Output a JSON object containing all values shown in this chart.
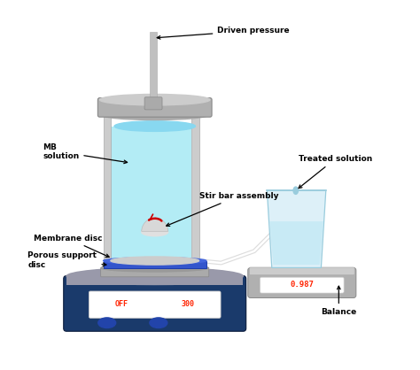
{
  "bg_color": "#ffffff",
  "labels": {
    "driven_pressure": "Driven pressure",
    "mb_solution": "MB\nsolution",
    "stir_bar": "Stir bar assembly",
    "membrane_disc": "Membrane disc",
    "porous_support": "Porous support\ndisc",
    "treated_solution": "Treated solution",
    "balance": "Balance",
    "display_left1": "OFF",
    "display_left2": "300",
    "display_right": "0.987"
  },
  "colors": {
    "cylinder_wall": "#cccccc",
    "cylinder_fill": "#b3ecf5",
    "lid_color": "#b0b0b0",
    "hotplate_body": "#1a3a6b",
    "hotplate_top": "#9999aa",
    "membrane_blue": "#3355cc",
    "display_text": "#ff2200",
    "stir_arrow": "#cc0000",
    "knob_color": "#2244aa",
    "arrow_color": "#000000",
    "label_color": "#000000",
    "pipe_color": "#c0c0c0",
    "beaker_fill": "#ddf0f8",
    "beaker_liquid": "#c8eaf5",
    "balance_body": "#b0b0b0",
    "support_plate": "#aaaaaa",
    "porous_color": "#3355cc"
  }
}
